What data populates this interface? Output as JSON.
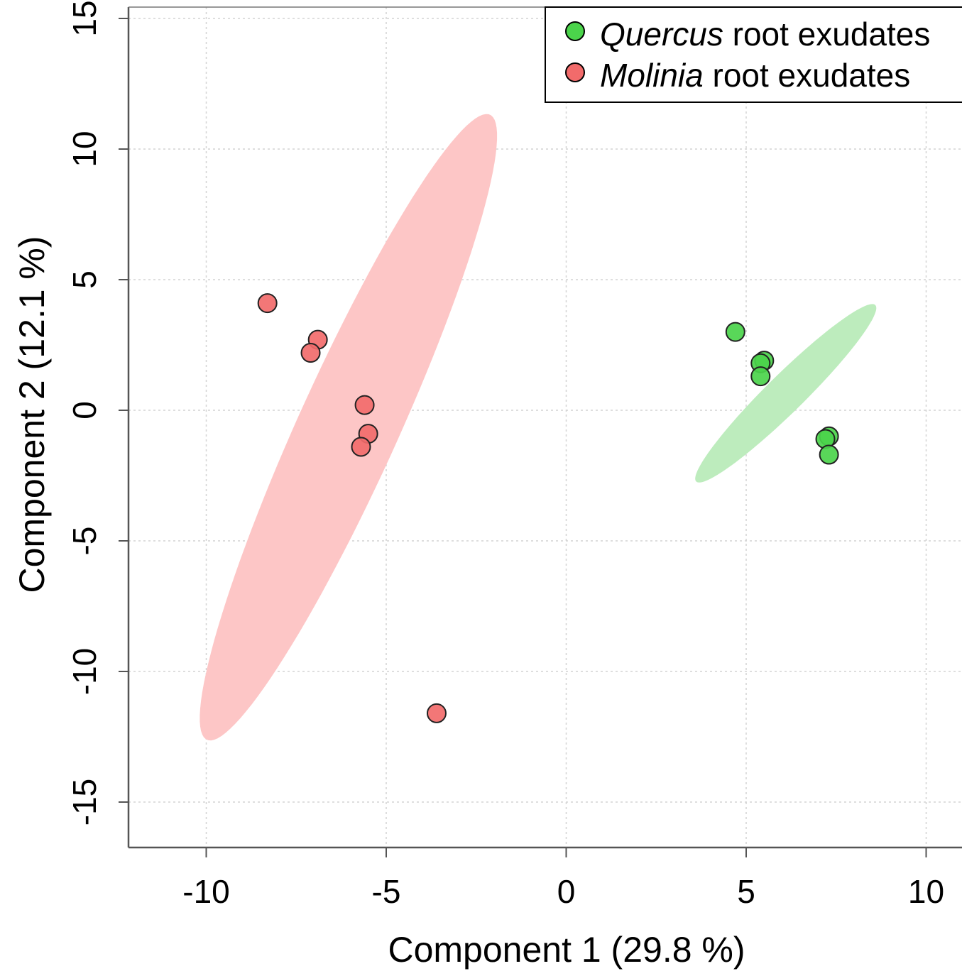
{
  "chart_data": {
    "type": "scatter",
    "title": "",
    "xlabel": "Component 1 (29.8 %)",
    "ylabel": "Component 2 (12.1 %)",
    "xlim": [
      -12.2,
      12
    ],
    "ylim": [
      -16.8,
      15.4
    ],
    "xticks": [
      -10,
      -5,
      0,
      5,
      10
    ],
    "yticks": [
      -15,
      -10,
      -5,
      0,
      5,
      10,
      15
    ],
    "xtick_labels": [
      "-10",
      "-5",
      "0",
      "5",
      "10"
    ],
    "ytick_labels": [
      "-15",
      "-10",
      "-5",
      "0",
      "5",
      "10",
      "15"
    ],
    "grid": true,
    "legend_position": "top-right",
    "series": [
      {
        "name_italic": "Quercus",
        "name_rest": " root exudates",
        "color": "#4bd44b",
        "ellipse_color": "#bdecbd",
        "points": [
          {
            "x": 4.7,
            "y": 3.0
          },
          {
            "x": 5.5,
            "y": 1.9
          },
          {
            "x": 5.4,
            "y": 1.8
          },
          {
            "x": 5.4,
            "y": 1.3
          },
          {
            "x": 7.3,
            "y": -1.0
          },
          {
            "x": 7.2,
            "y": -1.1
          },
          {
            "x": 7.3,
            "y": -1.7
          }
        ],
        "ellipse": {
          "cx": 6.1,
          "cy": 0.65,
          "rx": 4.2,
          "ry": 0.6,
          "angle_deg": 54
        }
      },
      {
        "name_italic": "Molinia",
        "name_rest": " root exudates",
        "color": "#f26b6b",
        "ellipse_color": "#fdc6c6",
        "points": [
          {
            "x": -8.3,
            "y": 4.1
          },
          {
            "x": -6.9,
            "y": 2.7
          },
          {
            "x": -7.1,
            "y": 2.2
          },
          {
            "x": -5.6,
            "y": 0.2
          },
          {
            "x": -5.5,
            "y": -0.9
          },
          {
            "x": -5.7,
            "y": -1.4
          },
          {
            "x": -3.6,
            "y": -11.6
          }
        ],
        "ellipse": {
          "cx": -6.05,
          "cy": -0.65,
          "rx": 12.6,
          "ry": 1.45,
          "angle_deg": 72
        }
      }
    ]
  }
}
